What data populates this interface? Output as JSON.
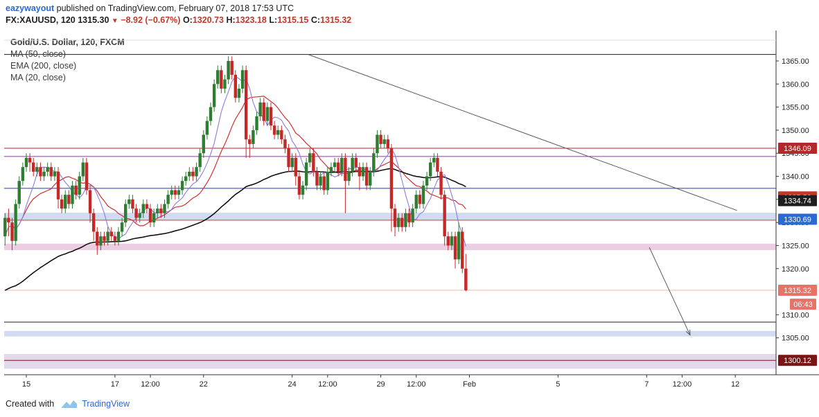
{
  "header": {
    "author": "eazywayout",
    "published": "published on TradingView.com, February 07, 2018 17:53 UTC",
    "symbol": "FX:XAUUSD, 120",
    "last": "1315.30",
    "change": "−8.92 (−0.67%)",
    "open_label": "O:",
    "open": "1320.73",
    "high_label": "H:",
    "high": "1323.18",
    "low_label": "L:",
    "low": "1315.15",
    "close_label": "C:",
    "close": "1315.32"
  },
  "footer": {
    "created_with": "Created with",
    "brand": "TradingView"
  },
  "chart_data": {
    "type": "candlestick",
    "title": "Gold/U.S. Dollar, 120, FXCM",
    "legend": [
      "MA (50, close)",
      "EMA (200, close)",
      "MA (20, close)"
    ],
    "ylim": [
      1297.0,
      1369.5
    ],
    "y_ticks": [
      1305,
      1310,
      1320,
      1325,
      1330,
      1335,
      1340,
      1345,
      1350,
      1355,
      1360,
      1365
    ],
    "x_ticks": [
      {
        "label": "15",
        "x": 5.6
      },
      {
        "label": "17",
        "x": 15.6
      },
      {
        "label": "12:00",
        "x": 19.6
      },
      {
        "label": "22",
        "x": 25.6
      },
      {
        "label": "24",
        "x": 35.6
      },
      {
        "label": "12:00",
        "x": 39.6
      },
      {
        "label": "29",
        "x": 45.6
      },
      {
        "label": "12:00",
        "x": 49.6
      },
      {
        "label": "Feb",
        "x": 55.6
      },
      {
        "label": "5",
        "x": 65.6
      },
      {
        "label": "7",
        "x": 75.6
      },
      {
        "label": "12:00",
        "x": 79.6
      },
      {
        "label": "12",
        "x": 85.6
      }
    ],
    "xlim": [
      3.1,
      90.2
    ],
    "price_tags": [
      {
        "value": "1346.09",
        "y": 1346.09,
        "color": "#b02a2a"
      },
      {
        "value": "1335.53",
        "y": 1335.53,
        "color": "#c0392b"
      },
      {
        "value": "1334.74",
        "y": 1334.74,
        "color": "#1e1e1e"
      },
      {
        "value": "1330.69",
        "y": 1330.69,
        "color": "#2a6ad1"
      },
      {
        "value": "1315.32",
        "y": 1315.32,
        "color": "#e57368"
      },
      {
        "value": "06:43",
        "y": 1312.3,
        "color": "#e57368"
      },
      {
        "value": "1300.12",
        "y": 1300.12,
        "color": "#7b1414"
      }
    ],
    "horizontal_lines": [
      {
        "y": 1366.4,
        "color": "#1e1e1e"
      },
      {
        "y": 1346.09,
        "color": "#b02a2a"
      },
      {
        "y": 1344.3,
        "color": "#9b2fb5"
      },
      {
        "y": 1337.4,
        "color": "#1f37c8"
      },
      {
        "y": 1330.5,
        "color": "#d33a3a"
      },
      {
        "y": 1315.32,
        "color": "#f0b8a8"
      },
      {
        "y": 1308.4,
        "color": "#1e1e1e"
      },
      {
        "y": 1300.12,
        "color": "#7b1414"
      }
    ],
    "zones": [
      {
        "y1": 1330.5,
        "y2": 1332.1,
        "color": "#c9d6f0"
      },
      {
        "y1": 1324.0,
        "y2": 1325.4,
        "color": "#e8c6dc"
      },
      {
        "y1": 1305.3,
        "y2": 1306.5,
        "color": "#c9d6f0"
      },
      {
        "y1": 1298.3,
        "y2": 1301.5,
        "color": "#ddd2ea"
      }
    ],
    "trendline": {
      "x1": 37.4,
      "y1": 1366.4,
      "x2": 85.8,
      "y2": 1332.6,
      "color": "#5a5a5a"
    },
    "projection_arrow": {
      "x1": 75.9,
      "y1": 1324.6,
      "x2": 80.5,
      "y2": 1305.6,
      "color": "#5a5a5a"
    },
    "candles": [
      [
        3.2,
        1327.0,
        1331.0,
        1325.0,
        1332.0
      ],
      [
        3.6,
        1331.0,
        1330.0,
        1327.0,
        1333.0
      ],
      [
        4.0,
        1330.0,
        1326.0,
        1324.0,
        1331.0
      ],
      [
        4.4,
        1326.0,
        1334.0,
        1325.0,
        1335.0
      ],
      [
        4.8,
        1334.0,
        1339.0,
        1333.0,
        1340.0
      ],
      [
        5.2,
        1339.0,
        1342.0,
        1338.0,
        1343.0
      ],
      [
        5.6,
        1342.0,
        1344.0,
        1341.0,
        1345.0
      ],
      [
        6.0,
        1344.0,
        1343.0,
        1341.0,
        1345.0
      ],
      [
        6.4,
        1343.0,
        1341.0,
        1340.0,
        1344.0
      ],
      [
        6.8,
        1341.0,
        1342.0,
        1340.0,
        1343.0
      ],
      [
        7.2,
        1342.0,
        1340.0,
        1339.0,
        1343.0
      ],
      [
        7.6,
        1340.0,
        1341.0,
        1339.0,
        1342.0
      ],
      [
        8.0,
        1341.0,
        1342.0,
        1340.0,
        1343.0
      ],
      [
        8.4,
        1342.0,
        1340.0,
        1339.0,
        1343.0
      ],
      [
        8.8,
        1340.0,
        1341.0,
        1339.0,
        1342.0
      ],
      [
        9.2,
        1341.0,
        1335.0,
        1333.0,
        1342.0
      ],
      [
        9.6,
        1335.0,
        1333.0,
        1332.0,
        1336.0
      ],
      [
        10.0,
        1333.0,
        1336.0,
        1332.0,
        1337.0
      ],
      [
        10.4,
        1336.0,
        1334.0,
        1333.0,
        1337.0
      ],
      [
        10.8,
        1334.0,
        1338.0,
        1333.0,
        1339.0
      ],
      [
        11.2,
        1338.0,
        1336.0,
        1335.0,
        1339.0
      ],
      [
        11.6,
        1336.0,
        1340.0,
        1335.0,
        1341.0
      ],
      [
        12.0,
        1340.0,
        1343.0,
        1339.0,
        1344.0
      ],
      [
        12.4,
        1343.0,
        1337.0,
        1336.0,
        1344.0
      ],
      [
        12.8,
        1337.0,
        1332.0,
        1330.0,
        1338.0
      ],
      [
        13.2,
        1332.0,
        1328.0,
        1326.0,
        1333.0
      ],
      [
        13.6,
        1328.0,
        1325.0,
        1323.0,
        1329.0
      ],
      [
        14.0,
        1325.0,
        1327.0,
        1324.0,
        1328.0
      ],
      [
        14.4,
        1327.0,
        1326.0,
        1325.0,
        1328.0
      ],
      [
        14.8,
        1326.0,
        1328.0,
        1325.0,
        1329.0
      ],
      [
        15.2,
        1328.0,
        1327.0,
        1326.0,
        1329.0
      ],
      [
        15.6,
        1327.0,
        1326.0,
        1325.0,
        1328.0
      ],
      [
        16.0,
        1326.0,
        1328.0,
        1325.0,
        1329.0
      ],
      [
        16.4,
        1328.0,
        1330.0,
        1327.0,
        1331.0
      ],
      [
        16.8,
        1330.0,
        1334.0,
        1329.0,
        1335.0
      ],
      [
        17.2,
        1334.0,
        1335.0,
        1333.0,
        1336.0
      ],
      [
        17.6,
        1335.0,
        1333.0,
        1332.0,
        1336.0
      ],
      [
        18.0,
        1333.0,
        1331.0,
        1330.0,
        1334.0
      ],
      [
        18.4,
        1331.0,
        1332.0,
        1330.0,
        1333.0
      ],
      [
        18.8,
        1332.0,
        1334.0,
        1331.0,
        1335.0
      ],
      [
        19.2,
        1334.0,
        1333.0,
        1332.0,
        1335.0
      ],
      [
        19.6,
        1333.0,
        1330.0,
        1329.0,
        1334.0
      ],
      [
        20.0,
        1330.0,
        1332.0,
        1329.0,
        1333.0
      ],
      [
        20.4,
        1332.0,
        1333.0,
        1331.0,
        1334.0
      ],
      [
        20.8,
        1333.0,
        1332.0,
        1331.0,
        1334.0
      ],
      [
        21.2,
        1332.0,
        1334.0,
        1331.0,
        1335.0
      ],
      [
        21.6,
        1334.0,
        1336.0,
        1333.0,
        1337.0
      ],
      [
        22.0,
        1336.0,
        1337.0,
        1335.0,
        1338.0
      ],
      [
        22.4,
        1337.0,
        1336.0,
        1335.0,
        1338.0
      ],
      [
        22.8,
        1336.0,
        1337.0,
        1335.0,
        1338.0
      ],
      [
        23.2,
        1337.0,
        1339.0,
        1336.0,
        1340.0
      ],
      [
        23.6,
        1339.0,
        1340.0,
        1338.0,
        1341.0
      ],
      [
        24.0,
        1340.0,
        1341.0,
        1339.0,
        1342.0
      ],
      [
        24.4,
        1341.0,
        1340.0,
        1339.0,
        1342.0
      ],
      [
        24.8,
        1340.0,
        1342.0,
        1339.0,
        1343.0
      ],
      [
        25.2,
        1342.0,
        1345.0,
        1341.0,
        1346.0
      ],
      [
        25.6,
        1345.0,
        1349.0,
        1344.0,
        1350.0
      ],
      [
        26.0,
        1349.0,
        1352.0,
        1348.0,
        1353.0
      ],
      [
        26.4,
        1352.0,
        1355.0,
        1351.0,
        1356.0
      ],
      [
        26.8,
        1355.0,
        1360.0,
        1354.0,
        1361.0
      ],
      [
        27.2,
        1360.0,
        1363.0,
        1359.0,
        1364.0
      ],
      [
        27.6,
        1363.0,
        1359.0,
        1358.0,
        1364.0
      ],
      [
        28.0,
        1359.0,
        1361.0,
        1358.0,
        1362.0
      ],
      [
        28.4,
        1361.0,
        1365.0,
        1360.0,
        1366.0
      ],
      [
        28.8,
        1365.0,
        1362.0,
        1361.0,
        1366.0
      ],
      [
        29.2,
        1362.0,
        1357.0,
        1356.0,
        1363.0
      ],
      [
        29.6,
        1357.0,
        1359.0,
        1356.0,
        1360.0
      ],
      [
        30.0,
        1359.0,
        1363.0,
        1358.0,
        1364.0
      ],
      [
        30.4,
        1363.0,
        1348.0,
        1344.0,
        1364.0
      ],
      [
        30.8,
        1348.0,
        1347.0,
        1344.0,
        1349.0
      ],
      [
        31.2,
        1347.0,
        1350.0,
        1346.0,
        1351.0
      ],
      [
        31.6,
        1350.0,
        1353.0,
        1349.0,
        1354.0
      ],
      [
        32.0,
        1353.0,
        1356.0,
        1352.0,
        1357.0
      ],
      [
        32.4,
        1356.0,
        1352.0,
        1351.0,
        1357.0
      ],
      [
        32.8,
        1352.0,
        1355.0,
        1351.0,
        1356.0
      ],
      [
        33.2,
        1355.0,
        1351.0,
        1350.0,
        1356.0
      ],
      [
        33.6,
        1351.0,
        1349.0,
        1348.0,
        1352.0
      ],
      [
        34.0,
        1349.0,
        1350.0,
        1348.0,
        1351.0
      ],
      [
        34.4,
        1350.0,
        1348.0,
        1347.0,
        1351.0
      ],
      [
        34.8,
        1348.0,
        1346.0,
        1345.0,
        1349.0
      ],
      [
        35.2,
        1346.0,
        1342.0,
        1341.0,
        1347.0
      ],
      [
        35.6,
        1342.0,
        1344.0,
        1341.0,
        1345.0
      ],
      [
        36.0,
        1344.0,
        1340.0,
        1338.0,
        1345.0
      ],
      [
        36.4,
        1340.0,
        1336.0,
        1335.0,
        1341.0
      ],
      [
        36.8,
        1336.0,
        1338.0,
        1335.0,
        1339.0
      ],
      [
        37.2,
        1338.0,
        1343.0,
        1337.0,
        1344.0
      ],
      [
        37.6,
        1343.0,
        1345.0,
        1342.0,
        1346.0
      ],
      [
        38.0,
        1345.0,
        1341.0,
        1340.0,
        1346.0
      ],
      [
        38.4,
        1341.0,
        1338.0,
        1337.0,
        1342.0
      ],
      [
        38.8,
        1338.0,
        1340.0,
        1337.0,
        1341.0
      ],
      [
        39.2,
        1340.0,
        1337.0,
        1336.0,
        1341.0
      ],
      [
        39.6,
        1337.0,
        1341.0,
        1336.0,
        1342.0
      ],
      [
        40.0,
        1341.0,
        1342.0,
        1340.0,
        1343.0
      ],
      [
        40.4,
        1342.0,
        1343.0,
        1341.0,
        1344.0
      ],
      [
        40.8,
        1343.0,
        1341.0,
        1340.0,
        1344.0
      ],
      [
        41.2,
        1341.0,
        1344.0,
        1340.0,
        1345.0
      ],
      [
        41.6,
        1344.0,
        1339.0,
        1332.0,
        1345.0
      ],
      [
        42.0,
        1339.0,
        1341.0,
        1338.0,
        1342.0
      ],
      [
        42.4,
        1341.0,
        1344.0,
        1340.0,
        1345.0
      ],
      [
        42.8,
        1344.0,
        1342.0,
        1341.0,
        1345.0
      ],
      [
        43.2,
        1342.0,
        1340.0,
        1337.0,
        1343.0
      ],
      [
        43.6,
        1340.0,
        1342.0,
        1339.0,
        1343.0
      ],
      [
        44.0,
        1342.0,
        1338.0,
        1337.0,
        1343.0
      ],
      [
        44.4,
        1338.0,
        1341.0,
        1337.0,
        1342.0
      ],
      [
        44.8,
        1341.0,
        1345.0,
        1340.0,
        1346.0
      ],
      [
        45.2,
        1345.0,
        1349.0,
        1344.0,
        1350.0
      ],
      [
        45.6,
        1349.0,
        1347.0,
        1346.0,
        1350.0
      ],
      [
        46.0,
        1347.0,
        1348.0,
        1346.0,
        1349.0
      ],
      [
        46.4,
        1348.0,
        1346.0,
        1345.0,
        1349.0
      ],
      [
        46.8,
        1346.0,
        1333.0,
        1328.0,
        1347.0
      ],
      [
        47.2,
        1333.0,
        1329.0,
        1327.0,
        1334.0
      ],
      [
        47.6,
        1329.0,
        1331.0,
        1328.0,
        1332.0
      ],
      [
        48.0,
        1331.0,
        1329.0,
        1328.0,
        1332.0
      ],
      [
        48.4,
        1329.0,
        1332.0,
        1328.0,
        1333.0
      ],
      [
        48.8,
        1332.0,
        1330.0,
        1329.0,
        1333.0
      ],
      [
        49.2,
        1330.0,
        1333.0,
        1329.0,
        1334.0
      ],
      [
        49.6,
        1333.0,
        1336.0,
        1332.0,
        1337.0
      ],
      [
        50.0,
        1336.0,
        1334.0,
        1333.0,
        1337.0
      ],
      [
        50.4,
        1334.0,
        1338.0,
        1333.0,
        1339.0
      ],
      [
        50.8,
        1338.0,
        1340.0,
        1337.0,
        1341.0
      ],
      [
        51.2,
        1340.0,
        1343.0,
        1339.0,
        1344.0
      ],
      [
        51.6,
        1343.0,
        1344.0,
        1342.0,
        1345.0
      ],
      [
        52.0,
        1344.0,
        1341.0,
        1340.0,
        1345.0
      ],
      [
        52.4,
        1341.0,
        1336.0,
        1335.0,
        1342.0
      ],
      [
        52.8,
        1336.0,
        1327.0,
        1325.0,
        1337.0
      ],
      [
        53.2,
        1327.0,
        1325.0,
        1324.0,
        1328.0
      ],
      [
        53.6,
        1325.0,
        1327.0,
        1324.0,
        1328.0
      ],
      [
        54.0,
        1327.0,
        1322.0,
        1320.0,
        1328.0
      ],
      [
        54.4,
        1322.0,
        1328.0,
        1321.0,
        1330.0
      ],
      [
        54.8,
        1328.0,
        1320.0,
        1319.0,
        1329.0
      ],
      [
        55.2,
        1320.0,
        1315.3,
        1315.1,
        1323.2
      ]
    ]
  }
}
